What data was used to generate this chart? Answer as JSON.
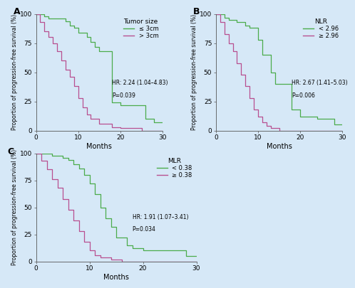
{
  "background_color": "#d6e8f7",
  "green_color": "#4cac4c",
  "pink_color": "#b85090",
  "ylabel": "Proportion of progression-free survival (%)",
  "xlabel": "Months",
  "xlim": [
    0,
    30
  ],
  "ylim": [
    0,
    100
  ],
  "yticks": [
    0,
    25,
    50,
    75,
    100
  ],
  "xticks": [
    0,
    10,
    20,
    30
  ],
  "panelA": {
    "label": "A",
    "legend_title": "Tumor size",
    "legend1": "≤ 3cm",
    "legend2": "> 3cm",
    "hr_text": "HR: 2.24 (1.04–4.83)",
    "p_text": "P=0.039",
    "green_x": [
      0,
      2,
      2,
      3,
      3,
      7,
      7,
      8,
      8,
      9,
      9,
      10,
      10,
      12,
      12,
      13,
      13,
      14,
      14,
      15,
      15,
      18,
      18,
      20,
      20,
      26,
      26,
      28,
      28,
      30
    ],
    "green_y": [
      100,
      100,
      98,
      98,
      96,
      96,
      94,
      94,
      90,
      90,
      88,
      88,
      84,
      84,
      80,
      80,
      76,
      76,
      72,
      72,
      68,
      68,
      24,
      24,
      22,
      22,
      10,
      10,
      7,
      7
    ],
    "pink_x": [
      0,
      1,
      1,
      2,
      2,
      3,
      3,
      4,
      4,
      5,
      5,
      6,
      6,
      7,
      7,
      8,
      8,
      9,
      9,
      10,
      10,
      11,
      11,
      12,
      12,
      13,
      13,
      15,
      15,
      18,
      18,
      20,
      20,
      25,
      25,
      30
    ],
    "pink_y": [
      100,
      100,
      93,
      93,
      85,
      85,
      80,
      80,
      75,
      75,
      68,
      68,
      60,
      60,
      52,
      52,
      46,
      46,
      38,
      38,
      28,
      28,
      20,
      20,
      14,
      14,
      10,
      10,
      6,
      6,
      3,
      3,
      2,
      2,
      0,
      0
    ]
  },
  "panelB": {
    "label": "B",
    "legend_title": "NLR",
    "legend1": "< 2.96",
    "legend2": "≥ 2.96",
    "hr_text": "HR: 2.67 (1.41–5.03)",
    "p_text": "P=0.006",
    "green_x": [
      0,
      2,
      2,
      3,
      3,
      5,
      5,
      7,
      7,
      8,
      8,
      10,
      10,
      11,
      11,
      13,
      13,
      14,
      14,
      18,
      18,
      20,
      20,
      24,
      24,
      28,
      28,
      30
    ],
    "green_y": [
      100,
      100,
      97,
      97,
      95,
      95,
      93,
      93,
      90,
      90,
      88,
      88,
      78,
      78,
      65,
      65,
      50,
      50,
      40,
      40,
      18,
      18,
      12,
      12,
      10,
      10,
      5,
      5
    ],
    "pink_x": [
      0,
      1,
      1,
      2,
      2,
      3,
      3,
      4,
      4,
      5,
      5,
      6,
      6,
      7,
      7,
      8,
      8,
      9,
      9,
      10,
      10,
      11,
      11,
      12,
      12,
      13,
      13,
      15,
      15,
      17,
      17,
      20,
      20,
      30
    ],
    "pink_y": [
      100,
      100,
      93,
      93,
      83,
      83,
      75,
      75,
      68,
      68,
      58,
      58,
      48,
      48,
      38,
      38,
      28,
      28,
      18,
      18,
      12,
      12,
      7,
      7,
      4,
      4,
      2,
      2,
      0,
      0,
      0,
      0,
      0,
      0
    ]
  },
  "panelC": {
    "label": "C",
    "legend_title": "MLR",
    "legend1": "< 0.38",
    "legend2": "≥ 0.38",
    "hr_text": "HR: 1.91 (1.07–3.41)",
    "p_text": "P=0.034",
    "green_x": [
      0,
      3,
      3,
      5,
      5,
      6,
      6,
      7,
      7,
      8,
      8,
      9,
      9,
      10,
      10,
      11,
      11,
      12,
      12,
      13,
      13,
      14,
      14,
      15,
      15,
      17,
      17,
      18,
      18,
      20,
      20,
      28,
      28,
      30
    ],
    "green_y": [
      100,
      100,
      98,
      98,
      96,
      96,
      94,
      94,
      90,
      90,
      86,
      86,
      80,
      80,
      72,
      72,
      62,
      62,
      50,
      50,
      40,
      40,
      32,
      32,
      22,
      22,
      15,
      15,
      12,
      12,
      10,
      10,
      5,
      5
    ],
    "pink_x": [
      0,
      1,
      1,
      2,
      2,
      3,
      3,
      4,
      4,
      5,
      5,
      6,
      6,
      7,
      7,
      8,
      8,
      9,
      9,
      10,
      10,
      11,
      11,
      12,
      12,
      14,
      14,
      16,
      16,
      20,
      20,
      25,
      25,
      30
    ],
    "pink_y": [
      100,
      100,
      93,
      93,
      85,
      85,
      76,
      76,
      68,
      68,
      58,
      58,
      48,
      48,
      38,
      38,
      28,
      28,
      18,
      18,
      10,
      10,
      6,
      6,
      4,
      4,
      2,
      2,
      0,
      0,
      0,
      0,
      0,
      0
    ]
  }
}
